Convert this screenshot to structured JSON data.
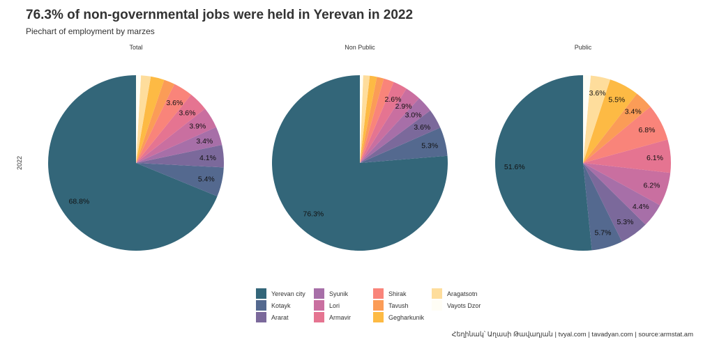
{
  "title": "76.3% of non-governmental jobs were held in Yerevan in 2022",
  "subtitle": "Piechart of employment by marzes",
  "row_label": "2022",
  "caption": "Հեղինակ՝ Աղասի Թավադյան    |    tvyal.com    |    tavadyan.com    |    source:armstat.am",
  "legend": [
    {
      "label": "Yerevan city",
      "color": "#336679"
    },
    {
      "label": "Kotayk",
      "color": "#54698f"
    },
    {
      "label": "Ararat",
      "color": "#7b699b"
    },
    {
      "label": "Syunik",
      "color": "#a76fa8"
    },
    {
      "label": "Lori",
      "color": "#c96fa0"
    },
    {
      "label": "Armavir",
      "color": "#e57491"
    },
    {
      "label": "Shirak",
      "color": "#f9847a"
    },
    {
      "label": "Tavush",
      "color": "#fb9c57"
    },
    {
      "label": "Gegharkunik",
      "color": "#fdba44"
    },
    {
      "label": "Aragatsotn",
      "color": "#fedd9c"
    },
    {
      "label": "Vayots Dzor",
      "color": "#fffdf5"
    }
  ],
  "chart_data": [
    {
      "type": "pie",
      "title": "Total",
      "categories": [
        "Yerevan city",
        "Kotayk",
        "Ararat",
        "Syunik",
        "Lori",
        "Armavir",
        "Shirak",
        "Tavush",
        "Gegharkunik",
        "Aragatsotn",
        "Vayots Dzor"
      ],
      "values": [
        68.8,
        5.4,
        4.1,
        3.4,
        3.9,
        3.6,
        3.6,
        2.0,
        2.5,
        1.8,
        0.9
      ],
      "labels": [
        "68.8%",
        "5.4%",
        "4.1%",
        "3.4%",
        "3.9%",
        "3.6%",
        "3.6%",
        "",
        "",
        "",
        ""
      ]
    },
    {
      "type": "pie",
      "title": "Non Public",
      "categories": [
        "Yerevan city",
        "Kotayk",
        "Ararat",
        "Syunik",
        "Lori",
        "Armavir",
        "Shirak",
        "Tavush",
        "Gegharkunik",
        "Aragatsotn",
        "Vayots Dzor"
      ],
      "values": [
        76.3,
        5.3,
        3.6,
        3.0,
        2.9,
        2.6,
        1.9,
        1.3,
        1.3,
        1.2,
        0.6
      ],
      "labels": [
        "76.3%",
        "5.3%",
        "3.6%",
        "3.0%",
        "2.9%",
        "2.6%",
        "",
        "",
        "",
        "",
        ""
      ]
    },
    {
      "type": "pie",
      "title": "Public",
      "categories": [
        "Yerevan city",
        "Kotayk",
        "Ararat",
        "Syunik",
        "Lori",
        "Armavir",
        "Shirak",
        "Tavush",
        "Gegharkunik",
        "Aragatsotn",
        "Vayots Dzor"
      ],
      "values": [
        51.6,
        5.7,
        5.3,
        4.4,
        6.2,
        6.1,
        6.8,
        3.4,
        5.5,
        3.6,
        1.4
      ],
      "labels": [
        "51.6%",
        "5.7%",
        "5.3%",
        "4.4%",
        "6.2%",
        "6.1%",
        "6.8%",
        "3.4%",
        "5.5%",
        "3.6%",
        ""
      ]
    }
  ]
}
